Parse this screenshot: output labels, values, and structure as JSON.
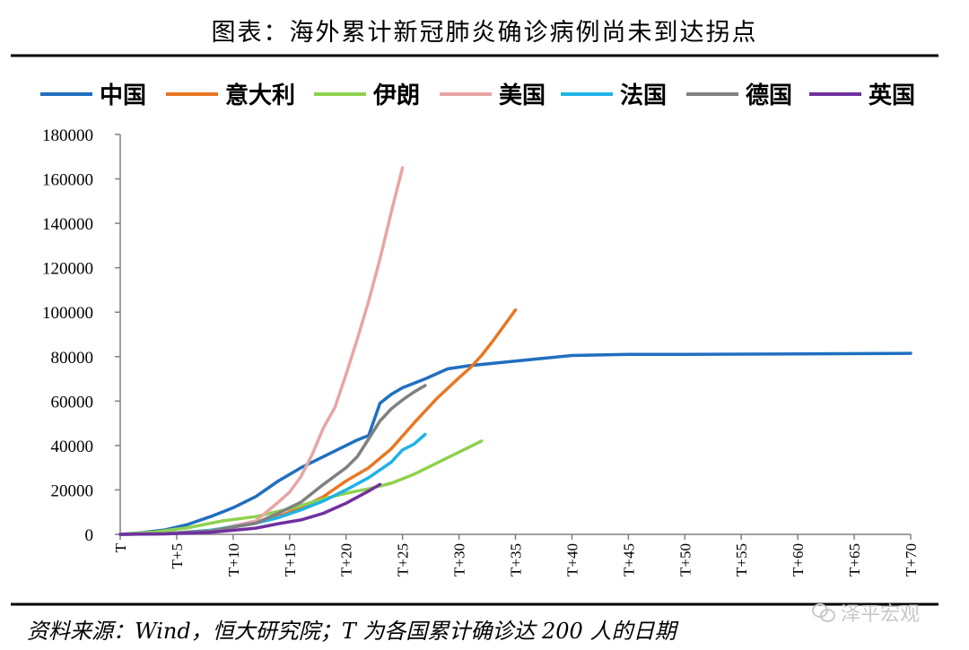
{
  "page": {
    "title": "图表：海外累计新冠肺炎确诊病例尚未到达拐点",
    "footer": "资料来源：Wind，恒大研究院；T 为各国累计确诊达 200 人的日期",
    "watermark": "泽平宏观",
    "rule_color": "#000000"
  },
  "chart_data": {
    "type": "line",
    "title": "",
    "xlabel": "",
    "ylabel": "",
    "ylim": [
      0,
      180000
    ],
    "xlim": [
      0,
      70
    ],
    "yticks": [
      0,
      20000,
      40000,
      60000,
      80000,
      100000,
      120000,
      140000,
      160000,
      180000
    ],
    "ytick_labels": [
      "0",
      "20000",
      "40000",
      "60000",
      "80000",
      "100000",
      "120000",
      "140000",
      "160000",
      "180000"
    ],
    "xticks": [
      0,
      5,
      10,
      15,
      20,
      25,
      30,
      35,
      40,
      45,
      50,
      55,
      60,
      65,
      70
    ],
    "xtick_labels": [
      "T",
      "T+5",
      "T+10",
      "T+15",
      "T+20",
      "T+25",
      "T+30",
      "T+35",
      "T+40",
      "T+45",
      "T+50",
      "T+55",
      "T+60",
      "T+65",
      "T+70"
    ],
    "grid": false,
    "legend_position": "top",
    "series": [
      {
        "name": "中国",
        "color": "#1f6fbf",
        "x": [
          0,
          2,
          4,
          6,
          8,
          10,
          12,
          14,
          16,
          18,
          20,
          21,
          22,
          23,
          24,
          25,
          27,
          29,
          31,
          35,
          40,
          45,
          50,
          60,
          70
        ],
        "y": [
          0,
          800,
          2000,
          4500,
          8000,
          12000,
          17000,
          24000,
          30000,
          35000,
          40000,
          42500,
          44500,
          59000,
          63000,
          66000,
          70000,
          74500,
          76000,
          78000,
          80500,
          81000,
          81000,
          81200,
          81500
        ]
      },
      {
        "name": "意大利",
        "color": "#e87722",
        "x": [
          0,
          4,
          8,
          12,
          14,
          16,
          18,
          20,
          22,
          24,
          26,
          28,
          30,
          31,
          32,
          33,
          34,
          35
        ],
        "y": [
          0,
          300,
          1800,
          5000,
          8000,
          12000,
          17000,
          24000,
          30000,
          38500,
          50000,
          61000,
          70500,
          75000,
          80500,
          87000,
          94000,
          101000
        ]
      },
      {
        "name": "伊朗",
        "color": "#8fd14f",
        "x": [
          0,
          3,
          6,
          9,
          12,
          15,
          18,
          20,
          22,
          24,
          26,
          28,
          30,
          32
        ],
        "y": [
          0,
          1000,
          3000,
          6000,
          8000,
          11500,
          16000,
          18500,
          20500,
          23000,
          27000,
          32000,
          37000,
          42000
        ]
      },
      {
        "name": "美国",
        "color": "#e8a5a5",
        "x": [
          0,
          4,
          8,
          12,
          14,
          15,
          16,
          17,
          18,
          19,
          20,
          21,
          22,
          23,
          24,
          25
        ],
        "y": [
          0,
          300,
          1500,
          6000,
          14500,
          19000,
          26000,
          36000,
          48000,
          57000,
          72000,
          88000,
          105000,
          124000,
          145000,
          165000
        ]
      },
      {
        "name": "法国",
        "color": "#1fb3e6",
        "x": [
          0,
          4,
          8,
          12,
          14,
          16,
          18,
          20,
          22,
          24,
          25,
          26,
          27
        ],
        "y": [
          0,
          300,
          1800,
          5000,
          7500,
          11000,
          15000,
          20000,
          25500,
          32500,
          38000,
          40500,
          45000
        ]
      },
      {
        "name": "德国",
        "color": "#808080",
        "x": [
          0,
          4,
          8,
          12,
          14,
          16,
          18,
          20,
          21,
          22,
          23,
          24,
          25,
          26,
          27
        ],
        "y": [
          0,
          300,
          1500,
          5000,
          9500,
          14500,
          22500,
          30000,
          35000,
          43000,
          51000,
          56500,
          60500,
          64000,
          67000
        ]
      },
      {
        "name": "英国",
        "color": "#7030a0",
        "x": [
          0,
          4,
          8,
          12,
          14,
          16,
          18,
          20,
          22,
          23
        ],
        "y": [
          0,
          200,
          900,
          2800,
          4800,
          6500,
          9500,
          14000,
          19500,
          22500
        ]
      }
    ]
  }
}
